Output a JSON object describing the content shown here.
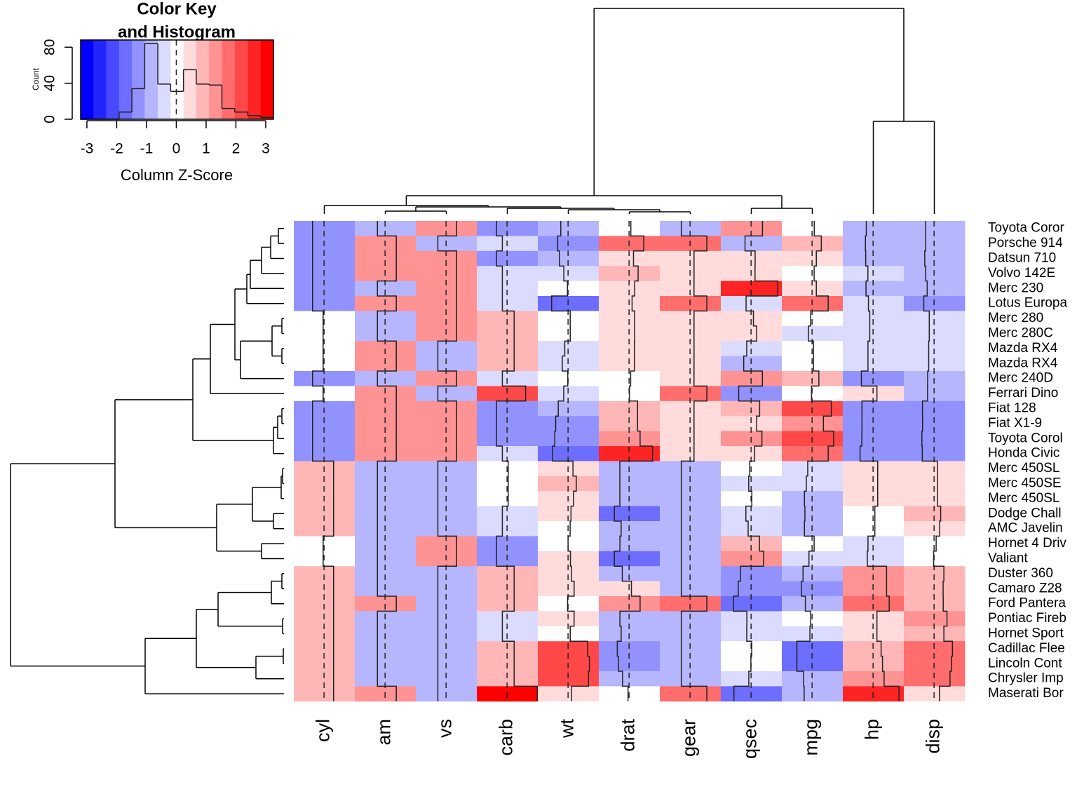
{
  "chart_data": {
    "type": "heatmap",
    "rows": [
      "Toyota Coror",
      "Porsche 914",
      "Datsun 710",
      "Volvo 142E",
      "Merc 230",
      "Lotus Europa",
      "Merc 280",
      "Merc 280C",
      "Mazda RX4",
      "Mazda RX4",
      "Merc 240D",
      "Ferrari Dino",
      "Fiat 128",
      "Fiat X1-9",
      "Toyota Corol",
      "Honda Civic",
      "Merc 450SL",
      "Merc 450SE",
      "Merc 450SL",
      "Dodge Chall",
      "AMC Javelin",
      "Hornet 4 Driv",
      "Valiant",
      "Duster 360",
      "Camaro Z28",
      "Ford Pantera",
      "Pontiac Fireb",
      "Hornet Sport",
      "Cadillac Flee",
      "Lincoln Cont",
      "Chrysler Imp",
      "Maserati Bor"
    ],
    "columns": [
      "cyl",
      "am",
      "vs",
      "carb",
      "wt",
      "drat",
      "gear",
      "qsec",
      "mpg",
      "hp",
      "disp"
    ],
    "values": [
      [
        -1.22,
        -0.81,
        1.12,
        -1.12,
        -0.77,
        0.19,
        -0.93,
        1.21,
        0.23,
        -0.72,
        -0.89
      ],
      [
        -1.22,
        1.19,
        -0.87,
        -0.5,
        -1.1,
        1.56,
        1.78,
        -0.64,
        0.98,
        -0.81,
        -0.89
      ],
      [
        -1.22,
        1.19,
        1.12,
        -1.12,
        -0.92,
        0.47,
        0.42,
        0.43,
        0.45,
        -0.78,
        -0.99
      ],
      [
        -1.22,
        1.19,
        1.12,
        -0.5,
        -0.45,
        0.96,
        0.42,
        0.42,
        0.22,
        -0.55,
        -0.89
      ],
      [
        -1.22,
        -0.81,
        1.12,
        -0.5,
        -0.07,
        0.6,
        0.42,
        2.83,
        0.45,
        -0.75,
        -0.73
      ],
      [
        -1.22,
        1.19,
        1.12,
        -0.5,
        -1.74,
        0.32,
        1.78,
        -0.53,
        1.71,
        -0.49,
        -1.09
      ],
      [
        -0.1,
        -0.81,
        1.12,
        0.75,
        0.23,
        0.6,
        0.42,
        0.25,
        -0.15,
        -0.35,
        -0.51
      ],
      [
        -0.1,
        -0.81,
        1.12,
        0.75,
        0.23,
        0.6,
        0.42,
        0.59,
        -0.38,
        -0.35,
        -0.51
      ],
      [
        -0.1,
        1.19,
        -0.87,
        0.75,
        -0.35,
        0.57,
        0.42,
        -0.46,
        0.15,
        -0.54,
        -0.57
      ],
      [
        -0.1,
        1.19,
        -0.87,
        0.75,
        -0.61,
        0.57,
        0.42,
        -0.78,
        0.15,
        -0.54,
        -0.57
      ],
      [
        -1.22,
        -0.81,
        1.12,
        -0.5,
        -0.03,
        0.17,
        0.42,
        1.2,
        0.72,
        -1.24,
        -0.68
      ],
      [
        -0.1,
        1.19,
        -0.87,
        1.97,
        -0.46,
        0.04,
        1.78,
        -1.31,
        -0.06,
        0.41,
        -0.69
      ],
      [
        -1.22,
        1.19,
        1.12,
        -1.12,
        -1.04,
        0.9,
        0.42,
        0.91,
        2.04,
        -1.18,
        -1.23
      ],
      [
        -1.22,
        1.19,
        1.12,
        -1.12,
        -1.31,
        0.9,
        0.42,
        0.59,
        1.2,
        -1.18,
        -1.22
      ],
      [
        -1.22,
        1.19,
        1.12,
        -1.12,
        -1.41,
        1.17,
        0.42,
        1.15,
        2.29,
        -1.19,
        -1.29
      ],
      [
        -1.22,
        1.19,
        1.12,
        -0.5,
        -1.64,
        2.49,
        0.42,
        0.38,
        1.71,
        -1.38,
        -1.25
      ],
      [
        1.01,
        -0.81,
        -0.87,
        0.12,
        0.52,
        -0.98,
        -0.93,
        -0.14,
        -0.46,
        0.49,
        0.36
      ],
      [
        1.01,
        -0.81,
        -0.87,
        0.12,
        0.87,
        -0.98,
        -0.93,
        -0.25,
        -0.61,
        0.49,
        0.36
      ],
      [
        1.01,
        -0.81,
        -0.87,
        0.12,
        0.58,
        -0.98,
        -0.93,
        0.08,
        -0.81,
        0.49,
        0.36
      ],
      [
        1.01,
        -0.81,
        -0.87,
        -0.5,
        0.31,
        -1.56,
        -0.93,
        -0.55,
        -0.76,
        0.19,
        0.7
      ],
      [
        1.01,
        -0.81,
        -0.87,
        -0.5,
        0.22,
        -0.84,
        -0.93,
        -0.31,
        -0.81,
        0.19,
        0.59
      ],
      [
        -0.1,
        -0.81,
        1.12,
        -1.12,
        0.0,
        -0.97,
        -0.93,
        0.89,
        0.22,
        -0.54,
        0.22
      ],
      [
        -0.1,
        -0.81,
        1.12,
        -1.12,
        0.25,
        -1.56,
        -0.93,
        1.33,
        -0.33,
        -0.61,
        -0.05
      ],
      [
        1.01,
        -0.81,
        -0.87,
        0.75,
        0.36,
        -0.72,
        -0.93,
        -1.12,
        -0.96,
        1.43,
        1.04
      ],
      [
        1.01,
        -0.81,
        -0.87,
        0.75,
        0.64,
        0.25,
        -0.93,
        -1.36,
        -1.13,
        1.43,
        0.96
      ],
      [
        1.01,
        1.19,
        -0.87,
        0.75,
        -0.05,
        1.17,
        1.78,
        -1.87,
        -0.71,
        1.71,
        0.97
      ],
      [
        1.01,
        -0.81,
        -0.87,
        -0.5,
        0.64,
        -0.97,
        -0.93,
        -0.45,
        -0.15,
        0.41,
        1.37
      ],
      [
        1.01,
        -0.81,
        -0.87,
        -0.5,
        0.23,
        -0.84,
        -0.93,
        -0.46,
        -0.23,
        0.41,
        1.04
      ],
      [
        1.01,
        -0.81,
        -0.87,
        0.75,
        2.08,
        -1.25,
        -0.93,
        0.07,
        -1.61,
        0.85,
        1.95
      ],
      [
        1.01,
        -0.81,
        -0.87,
        0.75,
        2.26,
        -1.12,
        -0.93,
        -0.02,
        -1.61,
        1.0,
        1.85
      ],
      [
        1.01,
        -0.81,
        -0.87,
        0.75,
        2.17,
        -0.69,
        -0.93,
        -0.24,
        -0.89,
        1.17,
        1.69
      ],
      [
        1.01,
        1.19,
        -0.87,
        3.21,
        0.36,
        -0.11,
        1.78,
        -1.82,
        -0.84,
        2.75,
        0.57
      ]
    ],
    "vline": 0,
    "colors": [
      "#0000ff",
      "#2424ff",
      "#4949ff",
      "#6d6dff",
      "#9292ff",
      "#b6b6ff",
      "#dbdbff",
      "#ffffff",
      "#ffdbdb",
      "#ffb6b6",
      "#ff9292",
      "#ff6d6d",
      "#ff4949",
      "#ff2424",
      "#ff0000"
    ],
    "key": {
      "title": [
        "Color Key",
        "and Histogram"
      ],
      "xlabel": "Column Z-Score",
      "ylabel": "Count",
      "xlim": [
        -3.21,
        3.26
      ],
      "xticks": [
        -3,
        -2,
        -1,
        0,
        1,
        2,
        3
      ],
      "ylim": [
        0,
        88
      ],
      "yticks": [
        0,
        40,
        80
      ],
      "bins": [
        -3.21,
        -2.78,
        -2.35,
        -1.92,
        -1.49,
        -1.06,
        -0.62,
        -0.19,
        0.24,
        0.67,
        1.1,
        1.53,
        1.96,
        2.4,
        2.83,
        3.26
      ],
      "counts": [
        0,
        0,
        0,
        8,
        34,
        84,
        39,
        31,
        55,
        39,
        38,
        12,
        8,
        4,
        2
      ]
    }
  }
}
